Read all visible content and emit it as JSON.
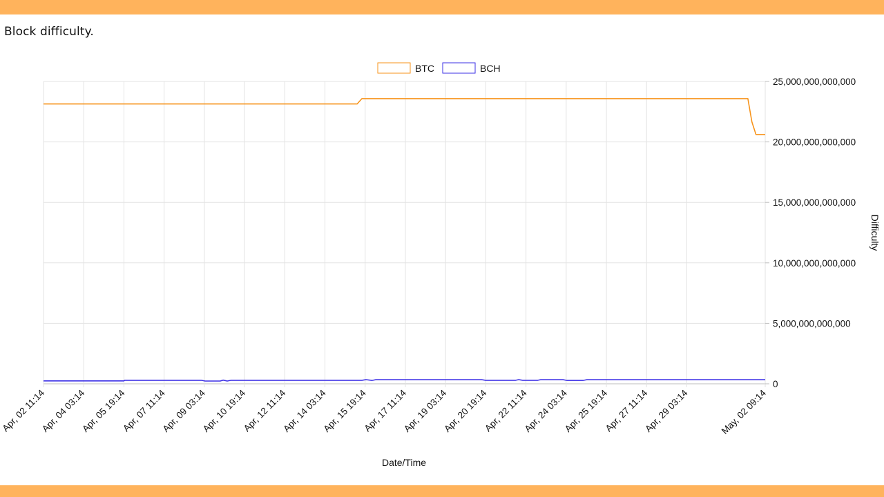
{
  "caption": "Block difficulty.",
  "colors": {
    "band": "#ffb35c",
    "btc": "#f7931a",
    "bch": "#3b2fe6",
    "grid": "#e3e3e3",
    "text": "#111111"
  },
  "chart_data": {
    "type": "line",
    "title": "",
    "xlabel": "Date/Time",
    "ylabel": "Difficulty",
    "y_axis_side": "right",
    "ylim": [
      0,
      25000000000000
    ],
    "y_ticks": [
      0,
      5000000000000,
      10000000000000,
      15000000000000,
      20000000000000,
      25000000000000
    ],
    "y_tick_labels": [
      "0",
      "5,000,000,000,000",
      "10,000,000,000,000",
      "15,000,000,000,000",
      "20,000,000,000,000",
      "25,000,000,000,000"
    ],
    "x_tick_labels": [
      "Apr, 02 11:14",
      "Apr, 04 03:14",
      "Apr, 05 19:14",
      "Apr, 07 11:14",
      "Apr, 09 03:14",
      "Apr, 10 19:14",
      "Apr, 12 11:14",
      "Apr, 14 03:14",
      "Apr, 15 19:14",
      "Apr, 17 11:14",
      "Apr, 19 03:14",
      "Apr, 20 19:14",
      "Apr, 22 11:14",
      "Apr, 24 03:14",
      "Apr, 25 19:14",
      "Apr, 27 11:14",
      "Apr, 29 03:14",
      "May, 02 09:14"
    ],
    "x_range": [
      "Apr, 02 11:14",
      "May, 02 09:14"
    ],
    "legend": {
      "placement": "top-center"
    },
    "grid": true,
    "series": [
      {
        "name": "BTC",
        "color": "#f7931a",
        "points": [
          [
            "Apr, 02 11:14",
            23137000000000
          ],
          [
            "Apr, 15 11:14",
            23137000000000
          ],
          [
            "Apr, 15 16:00",
            23580000000000
          ],
          [
            "May, 01 16:00",
            23580000000000
          ],
          [
            "May, 01 20:00",
            21660000000000
          ],
          [
            "May, 02 00:00",
            20610000000000
          ],
          [
            "May, 02 09:14",
            20610000000000
          ]
        ]
      },
      {
        "name": "BCH",
        "color": "#3b2fe6",
        "points": [
          [
            "Apr, 02 11:14",
            240000000000
          ],
          [
            "Apr, 05 19:14",
            240000000000
          ],
          [
            "Apr, 05 20:00",
            290000000000
          ],
          [
            "Apr, 09 00:00",
            290000000000
          ],
          [
            "Apr, 09 04:00",
            230000000000
          ],
          [
            "Apr, 09 19:00",
            230000000000
          ],
          [
            "Apr, 09 22:00",
            300000000000
          ],
          [
            "Apr, 10 02:00",
            230000000000
          ],
          [
            "Apr, 10 06:00",
            290000000000
          ],
          [
            "Apr, 15 16:00",
            290000000000
          ],
          [
            "Apr, 15 20:00",
            340000000000
          ],
          [
            "Apr, 16 02:00",
            280000000000
          ],
          [
            "Apr, 16 06:00",
            340000000000
          ],
          [
            "Apr, 20 15:00",
            340000000000
          ],
          [
            "Apr, 20 19:00",
            290000000000
          ],
          [
            "Apr, 22 01:00",
            290000000000
          ],
          [
            "Apr, 22 04:00",
            340000000000
          ],
          [
            "Apr, 22 08:00",
            290000000000
          ],
          [
            "Apr, 22 23:00",
            290000000000
          ],
          [
            "Apr, 23 02:00",
            340000000000
          ],
          [
            "Apr, 24 00:00",
            340000000000
          ],
          [
            "Apr, 24 04:00",
            280000000000
          ],
          [
            "Apr, 24 20:00",
            280000000000
          ],
          [
            "Apr, 25 00:00",
            340000000000
          ],
          [
            "May, 02 09:14",
            340000000000
          ]
        ]
      }
    ]
  }
}
